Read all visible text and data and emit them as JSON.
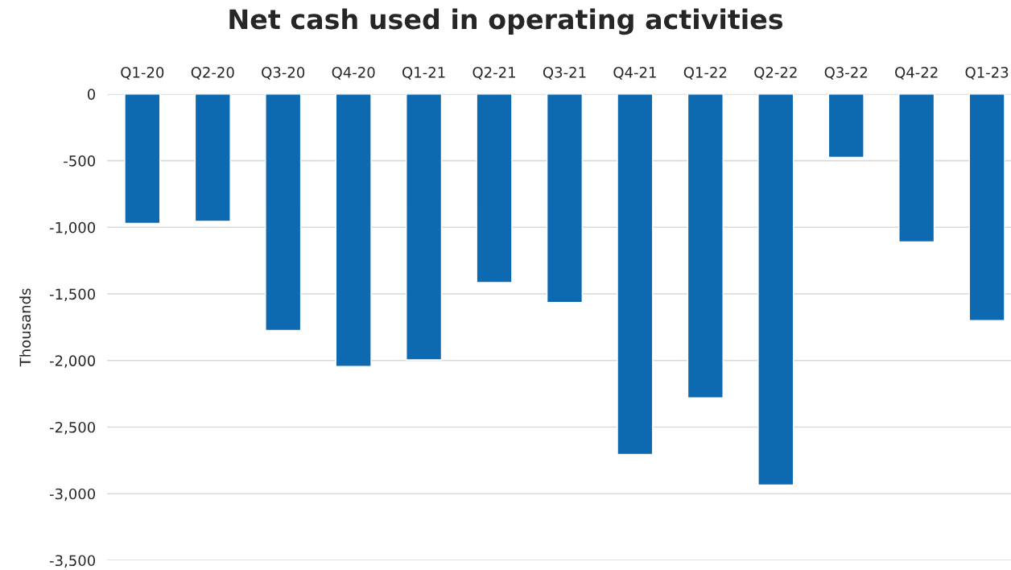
{
  "chart_data": {
    "type": "bar",
    "title": "Net cash used in operating activities",
    "ylabel": "Thousands",
    "categories": [
      "Q1-20",
      "Q2-20",
      "Q3-20",
      "Q4-20",
      "Q1-21",
      "Q2-21",
      "Q3-21",
      "Q4-21",
      "Q1-22",
      "Q2-22",
      "Q3-22",
      "Q4-22",
      "Q1-23"
    ],
    "values": [
      -970,
      -955,
      -1775,
      -2045,
      -1995,
      -1415,
      -1565,
      -2705,
      -2280,
      -2935,
      -475,
      -1110,
      -1700
    ],
    "color": "#0d6ab1",
    "ylim": [
      -3500,
      0
    ],
    "yticks": [
      {
        "value": -3500,
        "label": "-3,500"
      },
      {
        "value": -3000,
        "label": "-3,000"
      },
      {
        "value": -2500,
        "label": "-2,500"
      },
      {
        "value": -2000,
        "label": "-2,000"
      },
      {
        "value": -1500,
        "label": "-1,500"
      },
      {
        "value": -1000,
        "label": "-1,000"
      },
      {
        "value": -500,
        "label": "-500"
      },
      0
    ],
    "grid": "y"
  }
}
